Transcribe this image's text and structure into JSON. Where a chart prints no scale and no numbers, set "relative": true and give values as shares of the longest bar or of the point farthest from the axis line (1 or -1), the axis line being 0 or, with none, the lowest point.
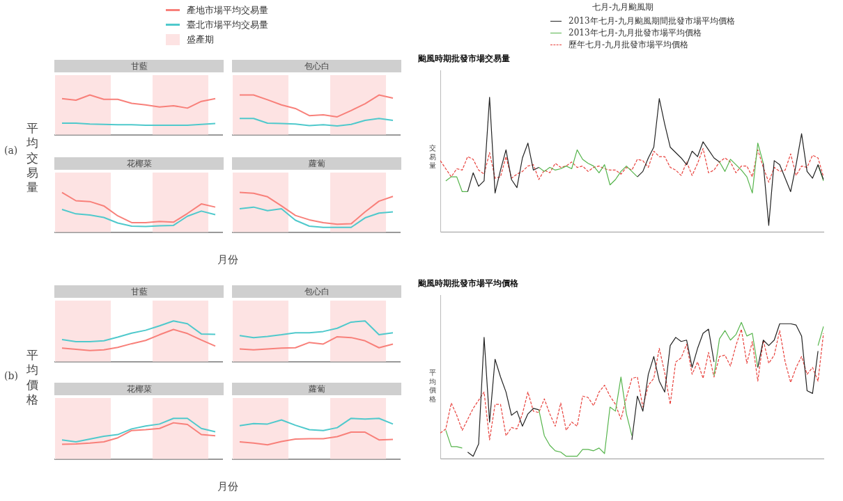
{
  "chart_data": [
    {
      "type": "line",
      "title": "甘藍",
      "categories": [
        null,
        null,
        null,
        null,
        null,
        null,
        null,
        null,
        null,
        null,
        null,
        null
      ],
      "relative": true,
      "marker": "none",
      "legend": "top",
      "ylabel": "平均交易量",
      "annotations": [
        "(a)",
        "盛產期"
      ],
      "series": [
        {
          "name": "產地市場平均交易量",
          "color": "#f8807a",
          "values": [
            0.91,
            0.87,
            1,
            0.89,
            0.89,
            0.79,
            0.75,
            0.7,
            0.73,
            0.67,
            0.84,
            0.91
          ]
        },
        {
          "name": "臺北市場平均交易量",
          "color": "#4fc9cc",
          "values": [
            0.29,
            0.29,
            0.27,
            0.26,
            0.25,
            0.25,
            0.24,
            0.24,
            0.24,
            0.24,
            0.26,
            0.28
          ]
        }
      ]
    },
    {
      "type": "line",
      "title": "包心白",
      "categories": [
        null,
        null,
        null,
        null,
        null,
        null,
        null,
        null,
        null,
        null,
        null,
        null
      ],
      "relative": true,
      "marker": "none",
      "series": [
        {
          "color": "#f8807a",
          "values": [
            1,
            1,
            0.88,
            0.75,
            0.66,
            0.48,
            0.5,
            0.45,
            0.61,
            0.78,
            1,
            0.92
          ]
        },
        {
          "color": "#4fc9cc",
          "values": [
            0.41,
            0.41,
            0.29,
            0.28,
            0.27,
            0.23,
            0.25,
            0.22,
            0.26,
            0.36,
            0.41,
            0.36
          ]
        }
      ]
    },
    {
      "type": "line",
      "title": "花椰菜",
      "categories": [
        null,
        null,
        null,
        null,
        null,
        null,
        null,
        null,
        null,
        null,
        null,
        null
      ],
      "relative": true,
      "marker": "none",
      "xlabel": "月份",
      "series": [
        {
          "color": "#f8807a",
          "values": [
            1,
            0.79,
            0.77,
            0.66,
            0.41,
            0.24,
            0.24,
            0.27,
            0.25,
            0.47,
            0.71,
            0.63
          ]
        },
        {
          "color": "#4fc9cc",
          "values": [
            0.57,
            0.46,
            0.43,
            0.37,
            0.23,
            0.15,
            0.14,
            0.16,
            0.17,
            0.4,
            0.53,
            0.44
          ]
        }
      ]
    },
    {
      "type": "line",
      "title": "蘿蔔",
      "categories": [
        null,
        null,
        null,
        null,
        null,
        null,
        null,
        null,
        null,
        null,
        null,
        null
      ],
      "relative": true,
      "marker": "none",
      "series": [
        {
          "color": "#f8807a",
          "values": [
            1,
            0.98,
            0.89,
            0.66,
            0.42,
            0.31,
            0.24,
            0.2,
            0.21,
            0.51,
            0.78,
            0.9
          ]
        },
        {
          "color": "#4fc9cc",
          "values": [
            0.59,
            0.63,
            0.54,
            0.59,
            0.3,
            0.15,
            0.12,
            0.12,
            0.12,
            0.36,
            0.48,
            0.51
          ]
        }
      ]
    },
    {
      "type": "line",
      "title": "甘藍",
      "categories": [
        null,
        null,
        null,
        null,
        null,
        null,
        null,
        null,
        null,
        null,
        null,
        null
      ],
      "relative": true,
      "marker": "none",
      "ylabel": "平均價格",
      "annotations": [
        "(b)"
      ],
      "series": [
        {
          "color": "#f8807a",
          "values": [
            0.33,
            0.3,
            0.27,
            0.29,
            0.35,
            0.44,
            0.52,
            0.66,
            0.79,
            0.69,
            0.53,
            0.38
          ]
        },
        {
          "color": "#4fc9cc",
          "values": [
            0.54,
            0.49,
            0.49,
            0.51,
            0.6,
            0.7,
            0.77,
            0.88,
            1,
            0.93,
            0.68,
            0.67
          ]
        }
      ]
    },
    {
      "type": "line",
      "title": "包心白",
      "categories": [
        null,
        null,
        null,
        null,
        null,
        null,
        null,
        null,
        null,
        null,
        null,
        null
      ],
      "relative": true,
      "marker": "none",
      "series": [
        {
          "color": "#f8807a",
          "values": [
            0.31,
            0.29,
            0.31,
            0.33,
            0.34,
            0.47,
            0.43,
            0.61,
            0.59,
            0.51,
            0.34,
            0.43
          ]
        },
        {
          "color": "#4fc9cc",
          "values": [
            0.64,
            0.59,
            0.62,
            0.66,
            0.71,
            0.71,
            0.74,
            0.82,
            0.97,
            1,
            0.66,
            0.71
          ]
        }
      ]
    },
    {
      "type": "line",
      "title": "花椰菜",
      "categories": [
        null,
        null,
        null,
        null,
        null,
        null,
        null,
        null,
        null,
        null,
        null,
        null
      ],
      "relative": true,
      "marker": "none",
      "xlabel": "月份",
      "series": [
        {
          "color": "#f8807a",
          "values": [
            0.36,
            0.37,
            0.39,
            0.42,
            0.52,
            0.7,
            0.72,
            0.75,
            0.89,
            0.85,
            0.6,
            0.57
          ]
        },
        {
          "color": "#4fc9cc",
          "values": [
            0.47,
            0.42,
            0.49,
            0.56,
            0.6,
            0.74,
            0.81,
            0.86,
            1,
            1,
            0.75,
            0.67
          ]
        }
      ]
    },
    {
      "type": "line",
      "title": "蘿蔔",
      "categories": [
        null,
        null,
        null,
        null,
        null,
        null,
        null,
        null,
        null,
        null,
        null,
        null
      ],
      "relative": true,
      "marker": "none",
      "series": [
        {
          "color": "#f8807a",
          "values": [
            0.42,
            0.39,
            0.35,
            0.43,
            0.49,
            0.5,
            0.5,
            0.55,
            0.66,
            0.66,
            0.47,
            0.48
          ]
        },
        {
          "color": "#4fc9cc",
          "values": [
            0.82,
            0.87,
            0.86,
            0.96,
            0.83,
            0.72,
            0.7,
            0.77,
            1,
            0.98,
            1,
            0.86
          ]
        }
      ]
    },
    {
      "type": "line",
      "title": "颱風時期批發市場交易量",
      "ylabel": "交易量",
      "relative": true,
      "marker": "none",
      "legend": "top",
      "legend_title": "七月-九月颱風期",
      "categories": [
        null,
        null,
        null,
        null,
        null,
        null,
        null,
        null,
        null,
        null,
        null,
        null,
        null,
        null,
        null,
        null,
        null,
        null,
        null,
        null,
        null,
        null,
        null,
        null,
        null,
        null,
        null,
        null,
        null,
        null,
        null,
        null,
        null,
        null,
        null,
        null,
        null,
        null,
        null,
        null,
        null,
        null,
        null,
        null,
        null,
        null,
        null,
        null,
        null,
        null,
        null,
        null,
        null,
        null,
        null,
        null,
        null,
        null,
        null,
        null,
        null,
        null,
        null,
        null,
        null,
        null,
        null,
        null,
        null,
        null,
        null
      ],
      "series": [
        {
          "name": "2013年七月-九月颱風期間批發市場平均價格",
          "color": "#222222",
          "values": [
            null,
            null,
            null,
            null,
            null,
            0.3,
            0.44,
            0.34,
            0.38,
            1,
            0.29,
            0.46,
            0.61,
            0.39,
            0.33,
            0.55,
            0.66,
            0.46,
            0.48,
            null,
            null,
            null,
            null,
            null,
            null,
            null,
            null,
            null,
            null,
            null,
            null,
            null,
            null,
            null,
            null,
            null,
            0.41,
            0.45,
            0.55,
            0.63,
            0.99,
            0.8,
            0.63,
            0.59,
            0.55,
            0.5,
            0.6,
            0.56,
            0.67,
            0.61,
            0.55,
            0.52,
            null,
            null,
            null,
            null,
            null,
            null,
            null,
            0.51,
            0.05,
            0.53,
            0.5,
            0.4,
            0.3,
            0.5,
            0.73,
            0.45,
            0.4,
            0.5,
            0.39
          ]
        },
        {
          "name": "2013年七月-九月批發市場平均價格",
          "color": "#55b44b",
          "values": [
            null,
            0.38,
            0.41,
            0.41,
            0.3,
            0.3,
            null,
            null,
            null,
            null,
            null,
            null,
            null,
            null,
            null,
            null,
            null,
            null,
            0.48,
            0.45,
            0.48,
            0.46,
            0.47,
            0.49,
            0.47,
            0.61,
            0.54,
            0.51,
            0.49,
            0.44,
            0.5,
            0.35,
            0.39,
            0.45,
            0.49,
            0.45,
            0.41,
            null,
            null,
            null,
            null,
            null,
            null,
            null,
            null,
            null,
            null,
            null,
            null,
            null,
            null,
            0.52,
            0.45,
            0.54,
            0.5,
            0.46,
            0.41,
            0.29,
            0.66,
            0.51,
            null,
            null,
            null,
            null,
            null,
            null,
            null,
            null,
            null,
            0.5,
            0.38
          ]
        },
        {
          "name": "歷年七月-九月批發市場平均價格",
          "color": "#e8413c",
          "line_style": "dashed",
          "values": [
            0.53,
            0.47,
            0.41,
            0.47,
            0.46,
            0.56,
            0.54,
            0.46,
            0.43,
            0.59,
            0.4,
            0.41,
            0.56,
            0.4,
            0.43,
            0.45,
            0.49,
            0.5,
            0.39,
            0.46,
            0.44,
            0.51,
            0.48,
            0.49,
            0.52,
            0.48,
            0.49,
            0.45,
            0.48,
            0.49,
            0.47,
            0.46,
            0.46,
            0.43,
            0.48,
            0.46,
            0.54,
            0.53,
            0.48,
            0.6,
            0.56,
            0.56,
            0.48,
            0.46,
            0.42,
            0.52,
            0.42,
            0.51,
            0.62,
            0.44,
            0.46,
            0.52,
            0.55,
            0.52,
            0.44,
            0.49,
            0.49,
            0.41,
            0.61,
            0.48,
            0.37,
            0.48,
            0.45,
            0.46,
            0.58,
            0.42,
            0.49,
            0.48,
            0.57,
            0.55,
            0.41
          ]
        }
      ]
    },
    {
      "type": "line",
      "title": "颱風時期批發市場平均價格",
      "ylabel": "平均價格",
      "relative": true,
      "marker": "none",
      "categories": [
        null,
        null,
        null,
        null,
        null,
        null,
        null,
        null,
        null,
        null,
        null,
        null,
        null,
        null,
        null,
        null,
        null,
        null,
        null,
        null,
        null,
        null,
        null,
        null,
        null,
        null,
        null,
        null,
        null,
        null,
        null,
        null,
        null,
        null,
        null,
        null,
        null,
        null,
        null,
        null,
        null,
        null,
        null,
        null,
        null,
        null,
        null,
        null,
        null,
        null,
        null,
        null,
        null,
        null,
        null,
        null,
        null,
        null,
        null,
        null,
        null,
        null,
        null,
        null,
        null,
        null,
        null,
        null,
        null,
        null,
        null
      ],
      "series": [
        {
          "color": "#222222",
          "values": [
            null,
            null,
            null,
            null,
            null,
            0.05,
            0.02,
            0.11,
            0.89,
            0.27,
            0.73,
            0.6,
            0.49,
            0.32,
            0.35,
            0.24,
            0.33,
            0.37,
            0.36,
            null,
            null,
            null,
            null,
            null,
            null,
            null,
            null,
            null,
            null,
            null,
            null,
            null,
            null,
            null,
            null,
            0.14,
            0.46,
            0.35,
            0.62,
            0.75,
            0.57,
            0.49,
            0.83,
            0.89,
            0.86,
            0.87,
            0.67,
            0.81,
            0.92,
            0.95,
            0.71,
            null,
            null,
            null,
            null,
            null,
            null,
            null,
            0.67,
            0.87,
            0.83,
            0.87,
            0.99,
            0.99,
            0.99,
            0.98,
            0.9,
            0.5,
            0.48,
            0.79,
            null
          ]
        },
        {
          "color": "#55b44b",
          "values": [
            null,
            0.21,
            0.09,
            0.09,
            0.08,
            null,
            null,
            null,
            null,
            null,
            null,
            null,
            null,
            null,
            null,
            null,
            null,
            null,
            0.36,
            0.17,
            0.1,
            0.06,
            0.05,
            0.02,
            0.02,
            0.02,
            0.07,
            0.07,
            0.06,
            0.08,
            0.04,
            0.38,
            0.35,
            0.6,
            0.33,
            0.17,
            null,
            null,
            null,
            null,
            null,
            null,
            null,
            null,
            null,
            null,
            null,
            null,
            null,
            null,
            0.61,
            0.88,
            0.94,
            0.87,
            0.91,
            1,
            0.9,
            0.92,
            0.67,
            null,
            null,
            null,
            null,
            null,
            null,
            null,
            null,
            null,
            null,
            0.83,
            0.97
          ]
        },
        {
          "color": "#e8413c",
          "line_style": "dashed",
          "values": [
            0.19,
            0.22,
            0.41,
            0.32,
            0.21,
            0.29,
            0.37,
            0.43,
            0.49,
            0.14,
            0.4,
            0.4,
            0.17,
            0.23,
            0.22,
            0.33,
            0.49,
            0.35,
            0.34,
            0.44,
            0.33,
            0.24,
            0.41,
            0.21,
            0.27,
            0.24,
            0.46,
            0.45,
            0.39,
            0.49,
            0.54,
            0.46,
            0.4,
            0.29,
            0.45,
            0.59,
            0.6,
            0.38,
            0.54,
            0.59,
            0.81,
            0.63,
            0.4,
            0.71,
            0.74,
            0.84,
            0.62,
            0.71,
            0.59,
            0.78,
            0.6,
            0.75,
            0.76,
            0.68,
            0.83,
            0.95,
            0.7,
            0.86,
            0.57,
            0.87,
            0.7,
            0.76,
            0.94,
            0.71,
            0.56,
            0.67,
            0.75,
            0.62,
            0.67,
            0.57,
            0.92
          ]
        }
      ]
    }
  ]
}
